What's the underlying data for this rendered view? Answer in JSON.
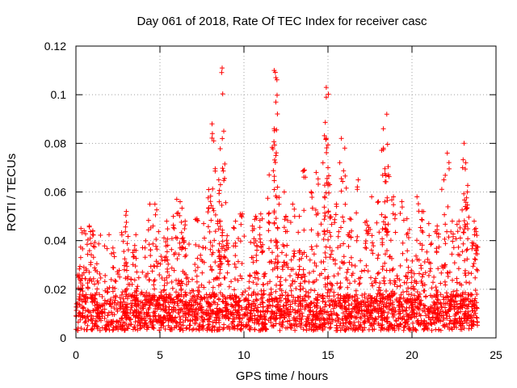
{
  "chart_data": {
    "type": "scatter",
    "title": "Day 061 of 2018, Rate Of TEC Index for receiver casc",
    "xlabel": "GPS time / hours",
    "ylabel": "ROTI / TECUs",
    "xlim": [
      0,
      25
    ],
    "ylim": [
      0,
      0.12
    ],
    "xticks": [
      0,
      5,
      10,
      15,
      20,
      25
    ],
    "xtick_labels": [
      "0",
      "5",
      "10",
      "15",
      "20",
      "25"
    ],
    "yticks": [
      0,
      0.02,
      0.04,
      0.06,
      0.08,
      0.1,
      0.12
    ],
    "ytick_labels": [
      "0",
      "0.02",
      "0.04",
      "0.06",
      "0.08",
      "0.1",
      "0.12"
    ],
    "grid": true,
    "marker": "+",
    "series": [
      {
        "name": "ROTI",
        "color": "#ff0000",
        "x_range": [
          0,
          23.9
        ],
        "typical_range": [
          0.003,
          0.035
        ],
        "peaks": [
          {
            "x": 0.3,
            "y": 0.045
          },
          {
            "x": 0.8,
            "y": 0.046
          },
          {
            "x": 1.0,
            "y": 0.044
          },
          {
            "x": 2.2,
            "y": 0.037
          },
          {
            "x": 3.0,
            "y": 0.052
          },
          {
            "x": 3.5,
            "y": 0.038
          },
          {
            "x": 4.4,
            "y": 0.055
          },
          {
            "x": 4.7,
            "y": 0.055
          },
          {
            "x": 5.4,
            "y": 0.048
          },
          {
            "x": 5.8,
            "y": 0.05
          },
          {
            "x": 6.0,
            "y": 0.057
          },
          {
            "x": 6.2,
            "y": 0.056
          },
          {
            "x": 6.5,
            "y": 0.048
          },
          {
            "x": 7.2,
            "y": 0.049
          },
          {
            "x": 7.6,
            "y": 0.047
          },
          {
            "x": 7.9,
            "y": 0.061
          },
          {
            "x": 8.1,
            "y": 0.088
          },
          {
            "x": 8.2,
            "y": 0.081
          },
          {
            "x": 8.5,
            "y": 0.065
          },
          {
            "x": 8.6,
            "y": 0.063
          },
          {
            "x": 8.6,
            "y": 0.048
          },
          {
            "x": 8.7,
            "y": 0.111
          },
          {
            "x": 8.8,
            "y": 0.085
          },
          {
            "x": 9.0,
            "y": 0.042
          },
          {
            "x": 9.5,
            "y": 0.048
          },
          {
            "x": 9.9,
            "y": 0.051
          },
          {
            "x": 10.5,
            "y": 0.046
          },
          {
            "x": 10.7,
            "y": 0.05
          },
          {
            "x": 11.0,
            "y": 0.051
          },
          {
            "x": 11.5,
            "y": 0.067
          },
          {
            "x": 11.8,
            "y": 0.11
          },
          {
            "x": 11.9,
            "y": 0.107
          },
          {
            "x": 11.9,
            "y": 0.097
          },
          {
            "x": 11.8,
            "y": 0.086
          },
          {
            "x": 11.9,
            "y": 0.075
          },
          {
            "x": 12.0,
            "y": 0.062
          },
          {
            "x": 12.4,
            "y": 0.06
          },
          {
            "x": 12.5,
            "y": 0.05
          },
          {
            "x": 12.9,
            "y": 0.055
          },
          {
            "x": 13.3,
            "y": 0.05
          },
          {
            "x": 13.6,
            "y": 0.069
          },
          {
            "x": 14.0,
            "y": 0.06
          },
          {
            "x": 14.3,
            "y": 0.068
          },
          {
            "x": 14.7,
            "y": 0.072
          },
          {
            "x": 14.9,
            "y": 0.103
          },
          {
            "x": 14.9,
            "y": 0.099
          },
          {
            "x": 14.9,
            "y": 0.082
          },
          {
            "x": 15.0,
            "y": 0.07
          },
          {
            "x": 15.1,
            "y": 0.063
          },
          {
            "x": 15.5,
            "y": 0.055
          },
          {
            "x": 15.8,
            "y": 0.082
          },
          {
            "x": 16.0,
            "y": 0.078
          },
          {
            "x": 16.3,
            "y": 0.049
          },
          {
            "x": 16.8,
            "y": 0.065
          },
          {
            "x": 17.3,
            "y": 0.048
          },
          {
            "x": 17.6,
            "y": 0.058
          },
          {
            "x": 18.0,
            "y": 0.056
          },
          {
            "x": 18.3,
            "y": 0.086
          },
          {
            "x": 18.5,
            "y": 0.092
          },
          {
            "x": 18.3,
            "y": 0.078
          },
          {
            "x": 18.6,
            "y": 0.067
          },
          {
            "x": 18.9,
            "y": 0.058
          },
          {
            "x": 19.4,
            "y": 0.056
          },
          {
            "x": 19.7,
            "y": 0.049
          },
          {
            "x": 20.3,
            "y": 0.058
          },
          {
            "x": 20.6,
            "y": 0.052
          },
          {
            "x": 21.0,
            "y": 0.047
          },
          {
            "x": 21.5,
            "y": 0.046
          },
          {
            "x": 21.9,
            "y": 0.065
          },
          {
            "x": 22.1,
            "y": 0.076
          },
          {
            "x": 22.4,
            "y": 0.048
          },
          {
            "x": 22.8,
            "y": 0.048
          },
          {
            "x": 23.1,
            "y": 0.08
          },
          {
            "x": 23.2,
            "y": 0.072
          },
          {
            "x": 23.3,
            "y": 0.06
          },
          {
            "x": 23.7,
            "y": 0.048
          },
          {
            "x": 23.8,
            "y": 0.045
          }
        ]
      }
    ]
  }
}
